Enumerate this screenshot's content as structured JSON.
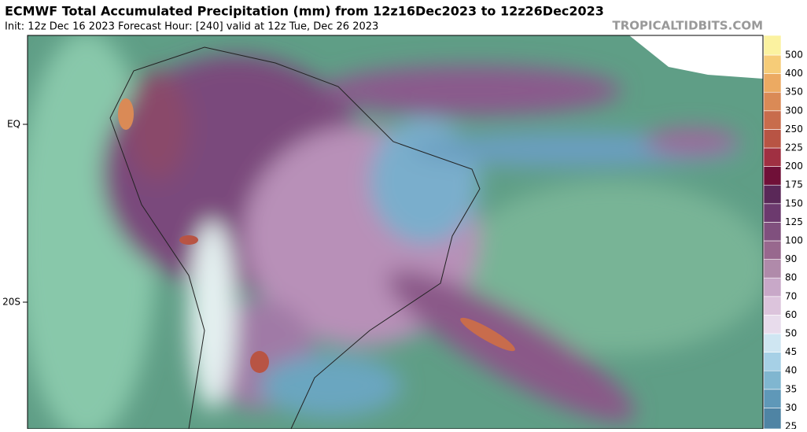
{
  "header": {
    "title": "ECMWF Total Accumulated Precipitation (mm) from 12z16Dec2023 to 12z26Dec2023",
    "subtitle": "Init: 12z Dec 16 2023   Forecast Hour: [240]   valid at 12z Tue, Dec 26 2023",
    "watermark": "TROPICALTIDBITS.COM"
  },
  "map": {
    "lat_labels": [
      "EQ",
      "20S"
    ]
  },
  "colorbar": {
    "levels": [
      25,
      30,
      35,
      40,
      45,
      50,
      60,
      70,
      80,
      90,
      100,
      125,
      150,
      175,
      200,
      225,
      250,
      300,
      350,
      400,
      500
    ],
    "colors": [
      "#4f84a4",
      "#5f98b8",
      "#80b6d0",
      "#a6d0e6",
      "#cfe6f2",
      "#e8dcec",
      "#dcc4dc",
      "#c8a8c8",
      "#b08aaa",
      "#98688e",
      "#80507e",
      "#6c3a6e",
      "#5a2858",
      "#701038",
      "#a03042",
      "#b85444",
      "#c86c4c",
      "#da8a56",
      "#ecaa62",
      "#f6cc78",
      "#fbf2a0"
    ]
  }
}
